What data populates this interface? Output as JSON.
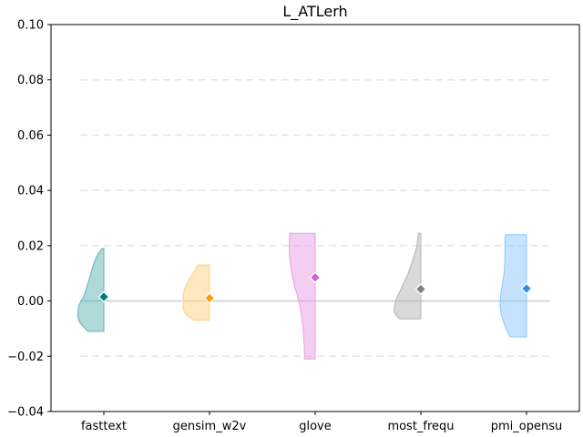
{
  "chart_data": {
    "type": "violin",
    "title": "L_ATLerh",
    "xlabel": "",
    "ylabel": "",
    "ylim": [
      -0.04,
      0.1
    ],
    "yticks": [
      -0.04,
      -0.02,
      0.0,
      0.02,
      0.04,
      0.06,
      0.08,
      0.1
    ],
    "ytick_labels": [
      "−0.04",
      "−0.02",
      "0.00",
      "0.02",
      "0.04",
      "0.06",
      "0.08",
      "0.10"
    ],
    "grid": "horizontal-dashed",
    "reference_line": 0.0,
    "categories": [
      "fasttext",
      "gensim_w2v",
      "glove",
      "most_frequ",
      "pmi_opensu"
    ],
    "series": [
      {
        "category": "fasttext",
        "color": "#5fb3b3",
        "marker_color": "#007b7f",
        "min": -0.011,
        "max": 0.019,
        "mean": 0.0015,
        "density": [
          [
            -0.011,
            0.6
          ],
          [
            -0.007,
            0.95
          ],
          [
            -0.002,
            0.95
          ],
          [
            0.002,
            0.75
          ],
          [
            0.008,
            0.55
          ],
          [
            0.013,
            0.4
          ],
          [
            0.017,
            0.22
          ],
          [
            0.019,
            0.05
          ]
        ]
      },
      {
        "category": "gensim_w2v",
        "color": "#ffd27f",
        "marker_color": "#ff9f00",
        "min": -0.007,
        "max": 0.013,
        "mean": 0.001,
        "density": [
          [
            -0.007,
            0.6
          ],
          [
            -0.004,
            0.95
          ],
          [
            0.0,
            1.0
          ],
          [
            0.004,
            0.95
          ],
          [
            0.008,
            0.75
          ],
          [
            0.011,
            0.55
          ],
          [
            0.013,
            0.45
          ]
        ]
      },
      {
        "category": "glove",
        "color": "#ea9de6",
        "marker_color": "#cc66cc",
        "min": -0.021,
        "max": 0.0245,
        "mean": 0.0085,
        "density": [
          [
            -0.021,
            0.4
          ],
          [
            -0.015,
            0.42
          ],
          [
            -0.008,
            0.48
          ],
          [
            0.0,
            0.62
          ],
          [
            0.006,
            0.8
          ],
          [
            0.012,
            0.92
          ],
          [
            0.018,
            0.98
          ],
          [
            0.0245,
            0.96
          ]
        ]
      },
      {
        "category": "most_frequ",
        "color": "#b3b3b3",
        "marker_color": "#808080",
        "min": -0.0065,
        "max": 0.0245,
        "mean": 0.0043,
        "density": [
          [
            -0.0065,
            0.8
          ],
          [
            -0.004,
            1.0
          ],
          [
            0.0,
            0.95
          ],
          [
            0.005,
            0.72
          ],
          [
            0.01,
            0.48
          ],
          [
            0.015,
            0.3
          ],
          [
            0.02,
            0.15
          ],
          [
            0.0245,
            0.1
          ]
        ]
      },
      {
        "category": "pmi_opensu",
        "color": "#8cc6ff",
        "marker_color": "#2a8ff2",
        "min": -0.013,
        "max": 0.024,
        "mean": 0.0045,
        "density": [
          [
            -0.013,
            0.62
          ],
          [
            -0.008,
            0.86
          ],
          [
            -0.002,
            1.0
          ],
          [
            0.004,
            0.95
          ],
          [
            0.01,
            0.85
          ],
          [
            0.016,
            0.82
          ],
          [
            0.021,
            0.82
          ],
          [
            0.024,
            0.8
          ]
        ]
      }
    ]
  }
}
